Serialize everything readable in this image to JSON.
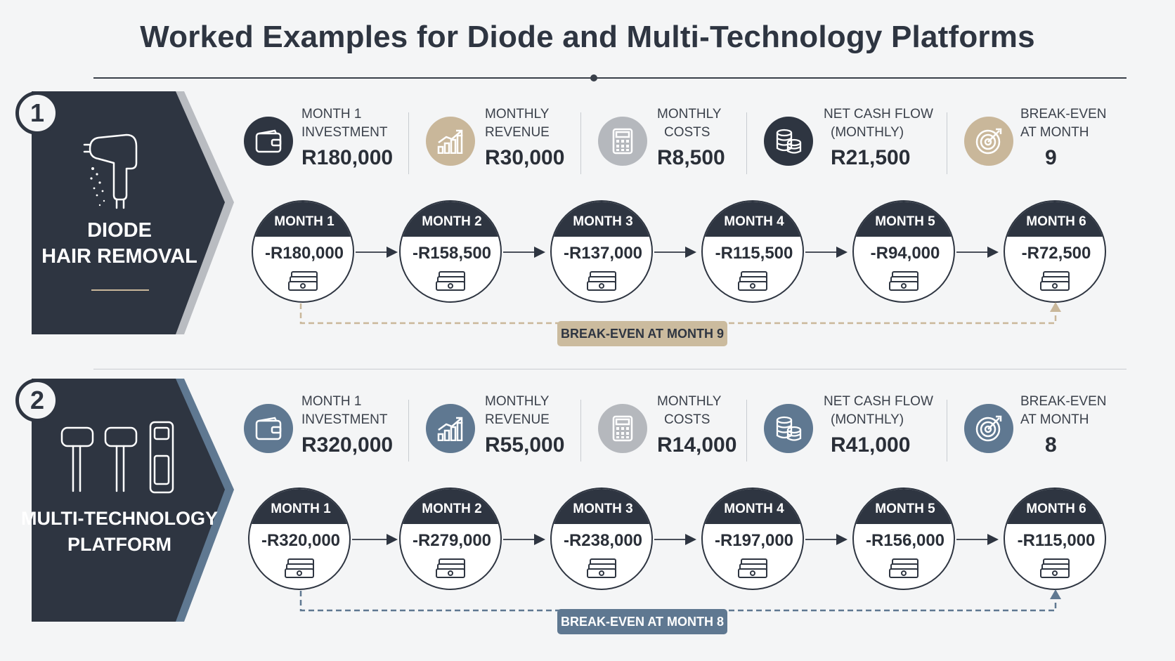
{
  "title": "Worked Examples for Diode and Multi-Technology Platforms",
  "colors": {
    "dark": "#2e3541",
    "tan": "#c9b79a",
    "slate": "#5f7891",
    "light_slate": "#8a9db0"
  },
  "sections": [
    {
      "number": "1",
      "title_line1": "DIODE",
      "title_line2": "HAIR REMOVAL",
      "metrics": [
        {
          "label_line1": "MONTH 1",
          "label_line2": "INVESTMENT",
          "value": "R180,000",
          "icon": "wallet-icon"
        },
        {
          "label_line1": "MONTHLY",
          "label_line2": "REVENUE",
          "value": "R30,000",
          "icon": "growth-chart-icon"
        },
        {
          "label_line1": "MONTHLY",
          "label_line2": "COSTS",
          "value": "R8,500",
          "icon": "calculator-icon"
        },
        {
          "label_line1": "NET CASH FLOW",
          "label_line2": "(MONTHLY)",
          "value": "R21,500",
          "icon": "coins-icon"
        },
        {
          "label_line1": "BREAK-EVEN",
          "label_line2": "AT MONTH",
          "value": "9",
          "icon": "target-icon"
        }
      ],
      "months": [
        {
          "label": "MONTH 1",
          "value": "-R180,000"
        },
        {
          "label": "MONTH 2",
          "value": "-R158,500"
        },
        {
          "label": "MONTH 3",
          "value": "-R137,000"
        },
        {
          "label": "MONTH 4",
          "value": "-R115,500"
        },
        {
          "label": "MONTH 5",
          "value": "-R94,000"
        },
        {
          "label": "MONTH 6",
          "value": "-R72,500"
        }
      ],
      "breakeven_label": "BREAK-EVEN AT MONTH 9"
    },
    {
      "number": "2",
      "title_line1": "MULTI-TECHNOLOGY",
      "title_line2": "PLATFORM",
      "metrics": [
        {
          "label_line1": "MONTH 1",
          "label_line2": "INVESTMENT",
          "value": "R320,000",
          "icon": "wallet-icon"
        },
        {
          "label_line1": "MONTHLY",
          "label_line2": "REVENUE",
          "value": "R55,000",
          "icon": "growth-chart-icon"
        },
        {
          "label_line1": "MONTHLY",
          "label_line2": "COSTS",
          "value": "R14,000",
          "icon": "calculator-icon"
        },
        {
          "label_line1": "NET CASH FLOW",
          "label_line2": "(MONTHLY)",
          "value": "R41,000",
          "icon": "coins-icon"
        },
        {
          "label_line1": "BREAK-EVEN",
          "label_line2": "AT MONTH",
          "value": "8",
          "icon": "target-icon"
        }
      ],
      "months": [
        {
          "label": "MONTH 1",
          "value": "-R320,000"
        },
        {
          "label": "MONTH 2",
          "value": "-R279,000"
        },
        {
          "label": "MONTH 3",
          "value": "-R238,000"
        },
        {
          "label": "MONTH 4",
          "value": "-R197,000"
        },
        {
          "label": "MONTH 5",
          "value": "-R156,000"
        },
        {
          "label": "MONTH 6",
          "value": "-R115,000"
        }
      ],
      "breakeven_label": "BREAK-EVEN AT MONTH 8"
    }
  ]
}
